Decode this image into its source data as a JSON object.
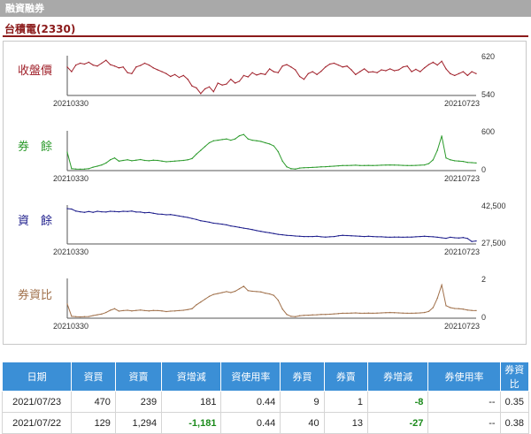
{
  "window": {
    "title": "融資融券"
  },
  "stock_title": "台積電(2330)",
  "chart_data": [
    {
      "type": "line",
      "label": "收盤價",
      "color": "#a0202a",
      "ylim": [
        540,
        620
      ],
      "ytick_labels": [
        "620",
        "540"
      ],
      "x_range_labels": [
        "20210330",
        "20210723"
      ],
      "values": [
        600,
        590,
        604,
        608,
        606,
        610,
        604,
        602,
        608,
        614,
        605,
        602,
        598,
        600,
        588,
        586,
        600,
        603,
        608,
        604,
        598,
        594,
        590,
        586,
        580,
        584,
        578,
        582,
        574,
        560,
        556,
        544,
        554,
        558,
        548,
        566,
        562,
        564,
        574,
        566,
        570,
        582,
        579,
        588,
        583,
        586,
        584,
        596,
        590,
        588,
        602,
        605,
        600,
        594,
        580,
        574,
        586,
        590,
        584,
        591,
        600,
        606,
        608,
        604,
        600,
        602,
        594,
        584,
        590,
        596,
        589,
        590,
        588,
        594,
        592,
        596,
        592,
        594,
        600,
        602,
        590,
        595,
        590,
        598,
        605,
        610,
        604,
        612,
        596,
        586,
        582,
        586,
        590,
        582,
        590,
        586
      ]
    },
    {
      "type": "line",
      "label": "券　餘",
      "color": "#2a9a2a",
      "ylim": [
        0,
        600
      ],
      "ytick_labels": [
        "600",
        "0"
      ],
      "x_range_labels": [
        "20210330",
        "20210723"
      ],
      "values": [
        290,
        30,
        25,
        22,
        24,
        30,
        55,
        70,
        90,
        120,
        170,
        200,
        150,
        160,
        170,
        155,
        165,
        175,
        160,
        155,
        165,
        160,
        150,
        140,
        145,
        150,
        155,
        160,
        170,
        190,
        260,
        320,
        380,
        440,
        470,
        480,
        490,
        500,
        480,
        500,
        550,
        570,
        500,
        480,
        470,
        460,
        440,
        420,
        390,
        300,
        150,
        60,
        30,
        25,
        40,
        45,
        48,
        50,
        55,
        60,
        62,
        65,
        70,
        75,
        80,
        80,
        82,
        85,
        80,
        80,
        82,
        80,
        82,
        85,
        88,
        90,
        88,
        85,
        82,
        80,
        80,
        82,
        85,
        90,
        110,
        170,
        320,
        545,
        200,
        170,
        155,
        150,
        145,
        130,
        125,
        120
      ]
    },
    {
      "type": "line",
      "label": "資　餘",
      "color": "#1a1a8a",
      "ylim": [
        27500,
        42500
      ],
      "ytick_labels": [
        "42,500",
        "27,500"
      ],
      "x_range_labels": [
        "20210330",
        "20210723"
      ],
      "values": [
        41800,
        41600,
        40800,
        40500,
        40300,
        40600,
        40300,
        40700,
        40500,
        40400,
        40700,
        40600,
        40500,
        40700,
        40600,
        40800,
        40400,
        40400,
        40100,
        40200,
        39900,
        39600,
        39500,
        39300,
        39400,
        39100,
        38800,
        38500,
        38200,
        37800,
        37400,
        36900,
        36600,
        36300,
        35900,
        35700,
        35500,
        35200,
        34800,
        34500,
        34200,
        33900,
        33600,
        33300,
        32900,
        32600,
        32300,
        32000,
        31700,
        31400,
        31200,
        31000,
        30900,
        30700,
        30600,
        30500,
        30500,
        30500,
        30600,
        30400,
        30300,
        30400,
        30500,
        30800,
        31000,
        30900,
        30800,
        30700,
        30600,
        30500,
        30600,
        30500,
        30400,
        30400,
        30300,
        30200,
        30300,
        30300,
        30200,
        30300,
        30300,
        30400,
        30500,
        30600,
        30500,
        30400,
        30200,
        30000,
        29800,
        30200,
        30000,
        29900,
        30100,
        29700,
        28500,
        28700
      ]
    },
    {
      "type": "line",
      "label": "券資比",
      "color": "#a0704a",
      "ylim": [
        0,
        2
      ],
      "ytick_labels": [
        "2",
        "0"
      ],
      "x_range_labels": [
        "20210330",
        "20210723"
      ],
      "values": [
        0.75,
        0.1,
        0.08,
        0.07,
        0.08,
        0.09,
        0.14,
        0.18,
        0.22,
        0.3,
        0.42,
        0.5,
        0.37,
        0.4,
        0.42,
        0.38,
        0.41,
        0.43,
        0.4,
        0.38,
        0.41,
        0.4,
        0.38,
        0.35,
        0.37,
        0.38,
        0.4,
        0.42,
        0.45,
        0.5,
        0.7,
        0.85,
        1.0,
        1.15,
        1.25,
        1.3,
        1.35,
        1.4,
        1.35,
        1.42,
        1.55,
        1.68,
        1.45,
        1.42,
        1.4,
        1.38,
        1.32,
        1.28,
        1.2,
        0.95,
        0.48,
        0.2,
        0.1,
        0.08,
        0.13,
        0.15,
        0.16,
        0.17,
        0.18,
        0.2,
        0.2,
        0.21,
        0.23,
        0.24,
        0.26,
        0.26,
        0.27,
        0.28,
        0.26,
        0.26,
        0.27,
        0.26,
        0.27,
        0.28,
        0.29,
        0.3,
        0.29,
        0.28,
        0.27,
        0.26,
        0.26,
        0.27,
        0.28,
        0.3,
        0.36,
        0.56,
        1.05,
        1.75,
        0.66,
        0.56,
        0.51,
        0.5,
        0.48,
        0.43,
        0.41,
        0.4
      ]
    }
  ],
  "table": {
    "headers": [
      "日期",
      "資買",
      "資賣",
      "資增減",
      "資使用率",
      "券買",
      "券賣",
      "券增減",
      "券使用率",
      "券資比"
    ],
    "rows": [
      [
        "2021/07/23",
        "470",
        "239",
        "181",
        "0.44",
        "9",
        "1",
        "-8",
        "--",
        "0.35"
      ],
      [
        "2021/07/22",
        "129",
        "1,294",
        "-1,181",
        "0.44",
        "40",
        "13",
        "-27",
        "--",
        "0.38"
      ]
    ]
  }
}
